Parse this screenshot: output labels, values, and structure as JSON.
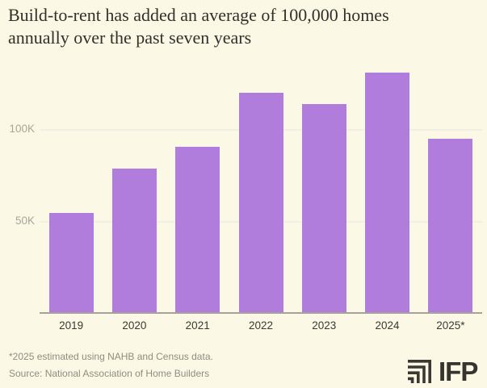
{
  "title": {
    "line1": "Build-to-rent has added an average of 100,000 homes",
    "line2": "annually over the past seven years"
  },
  "chart_data": {
    "type": "bar",
    "title": "Build-to-rent has added an average of 100,000 homes annually over the past seven years",
    "categories": [
      "2019",
      "2020",
      "2021",
      "2022",
      "2023",
      "2024",
      "2025*"
    ],
    "values": [
      55000,
      79000,
      91000,
      120000,
      114000,
      131000,
      95000
    ],
    "unit": "homes",
    "xlabel": "",
    "ylabel": "",
    "ylim": [
      0,
      136000
    ],
    "yticks": [
      {
        "value": 50000,
        "label": "50K"
      },
      {
        "value": 100000,
        "label": "100K"
      }
    ],
    "grid": "horizontal-light",
    "legend": "none",
    "bar_color": "#b17ddd"
  },
  "footnote": "*2025 estimated using NAHB and Census data.",
  "source": "Source: National Association of Home Builders",
  "logo": {
    "text": "IFP",
    "icon": "nested-corner-squares-icon"
  },
  "colors": {
    "background": "#fbf8e5",
    "bar": "#b17ddd",
    "axis_line": "#a6a299",
    "gridline": "#f1efe3",
    "title_text": "#32302a",
    "y_tick_label": "#a9a59d",
    "x_tick_label": "#3b3931",
    "footnote_text": "#8f8d83",
    "logo_color": "#3a3832"
  }
}
